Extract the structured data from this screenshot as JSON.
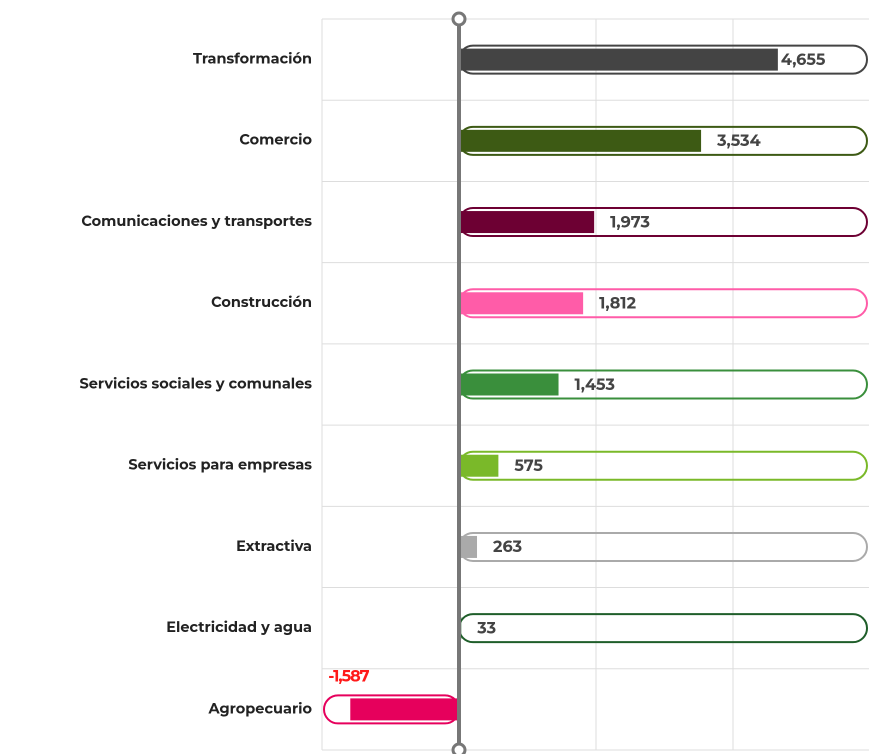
{
  "chart_data": {
    "type": "bar",
    "orientation": "horizontal",
    "categories": [
      "Transformación",
      "Comercio",
      "Comunicaciones y transportes",
      "Construcción",
      "Servicios sociales y comunales",
      "Servicios para empresas",
      "Extractiva",
      "Electricidad y agua",
      "Agropecuario"
    ],
    "values": [
      4655,
      3534,
      1973,
      1812,
      1453,
      575,
      263,
      33,
      -1587
    ],
    "value_labels": [
      "4,655",
      "3,534",
      "1,973",
      "1,812",
      "1,453",
      "575",
      "263",
      "33",
      "-1,587"
    ],
    "colors": [
      "#444444",
      "#3d5a14",
      "#6d0033",
      "#ff5ca8",
      "#3a8f3c",
      "#7ab929",
      "#aaaaaa",
      "#1f5e2a",
      "#e6005c"
    ],
    "xlim": [
      -2000,
      6000
    ],
    "xticks": [
      -2000,
      0,
      2000,
      4000,
      6000
    ],
    "grid": true
  }
}
